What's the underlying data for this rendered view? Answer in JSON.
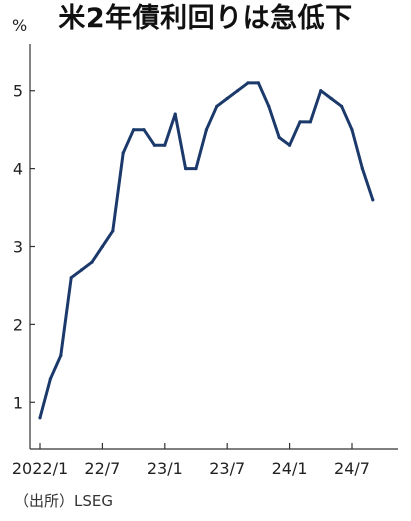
{
  "title": "米2年債利回りは急低下",
  "unit": "%",
  "source": "（出所）LSEG",
  "colors": {
    "line": "#1b3a6b",
    "axis": "#333333",
    "text": "#222222"
  },
  "chart_data": {
    "type": "line",
    "title": "米2年債利回りは急低下",
    "ylabel": "%",
    "xlabel": "",
    "x_ticks": [
      "2022/1",
      "22/7",
      "23/1",
      "23/7",
      "24/1",
      "24/7"
    ],
    "y_ticks": [
      1,
      2,
      3,
      4,
      5
    ],
    "xlim": [
      "2022-01",
      "2024-10"
    ],
    "ylim": [
      0.4,
      5.6
    ],
    "grid": false,
    "series": [
      {
        "x": [
          "2022-01",
          "2022-02",
          "2022-03",
          "2022-04",
          "2022-05",
          "2022-06",
          "2022-07",
          "2022-08",
          "2022-09",
          "2022-10",
          "2022-11",
          "2022-12",
          "2023-01",
          "2023-02",
          "2023-03",
          "2023-04",
          "2023-05",
          "2023-06",
          "2023-07",
          "2023-08",
          "2023-09",
          "2023-10",
          "2023-11",
          "2023-12",
          "2024-01",
          "2024-02",
          "2024-03",
          "2024-04",
          "2024-05",
          "2024-06",
          "2024-07",
          "2024-08",
          "2024-09"
        ],
        "values": [
          0.8,
          1.3,
          1.6,
          2.6,
          2.7,
          2.8,
          3.0,
          3.2,
          4.2,
          4.5,
          4.5,
          4.3,
          4.3,
          4.7,
          4.0,
          4.0,
          4.5,
          4.8,
          4.9,
          5.0,
          5.1,
          5.1,
          4.8,
          4.4,
          4.3,
          4.6,
          4.6,
          5.0,
          4.9,
          4.8,
          4.5,
          4.0,
          3.6
        ]
      }
    ]
  }
}
